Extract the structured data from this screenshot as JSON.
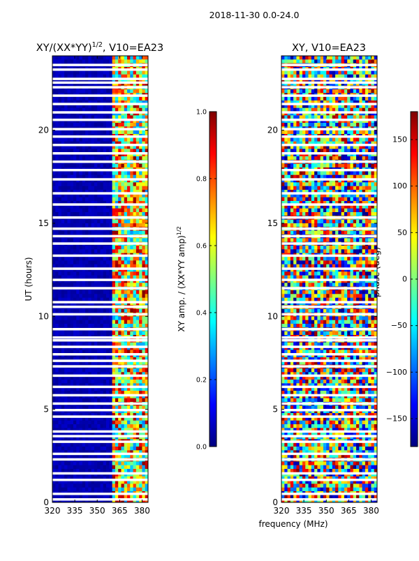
{
  "chart_data": {
    "suptitle": "2018-11-30 0.0-24.0",
    "shared_xlabel": "frequency (MHz)",
    "colors": {
      "jet": [
        "#00007f",
        "#0000ff",
        "#007fff",
        "#00ffff",
        "#7fff7f",
        "#ffff00",
        "#ff7f00",
        "#ff0000",
        "#7f0000"
      ],
      "gap": "#ffffff",
      "frame": "#000000"
    },
    "panels": [
      {
        "id": "amp",
        "type": "heatmap",
        "title_main": "XY/(XX*YY)",
        "title_exp": "1/2",
        "title_suffix": ", V10=EA23",
        "xlabel": "",
        "ylabel": "UT (hours)",
        "xlim": [
          320,
          384
        ],
        "ylim": [
          0,
          24
        ],
        "xticks": [
          320,
          335,
          350,
          365,
          380
        ],
        "yticks": [
          0,
          5,
          10,
          15,
          20
        ],
        "colorbar": {
          "label_main": "XY amp. / (XX*YY amp)",
          "label_exp": "1/2",
          "range": [
            0.0,
            1.0
          ],
          "ticks": [
            "0.0",
            "0.2",
            "0.4",
            "0.6",
            "0.8",
            "1.0"
          ]
        },
        "description": "low amplitude (~0) below 361 MHz, high variable amplitude above 361 MHz; white rows are flagged time gaps"
      },
      {
        "id": "phase",
        "type": "heatmap",
        "title_main": "XY",
        "title_exp": "",
        "title_suffix": ", V10=EA23",
        "xlabel": "",
        "ylabel": "",
        "xlim": [
          320,
          384
        ],
        "ylim": [
          0,
          24
        ],
        "xticks": [
          320,
          335,
          350,
          365,
          380
        ],
        "yticks": [
          0,
          5,
          10,
          15,
          20
        ],
        "colorbar": {
          "label_main": "phase (deg)",
          "label_exp": "",
          "range": [
            -180,
            180
          ],
          "ticks": [
            "−150",
            "−100",
            "−50",
            "0",
            "50",
            "100",
            "150"
          ]
        },
        "description": "phase noisy across full band; white rows are flagged time gaps"
      }
    ],
    "flagged_time_gaps_hours": [
      0.15,
      0.45,
      1.2,
      1.55,
      2.3,
      2.6,
      3.25,
      3.55,
      3.8,
      4.6,
      4.95,
      5.3,
      5.75,
      6.2,
      6.8,
      7.3,
      7.6,
      7.95,
      8.35,
      8.7,
      8.85,
      9.3,
      10.1,
      10.5,
      10.75,
      11.5,
      11.95,
      12.55,
      13.25,
      13.9,
      14.3,
      14.7,
      15.3,
      16.0,
      16.6,
      17.35,
      17.85,
      18.3,
      18.75,
      19.2,
      19.65,
      20.05,
      20.55,
      20.95,
      21.4,
      21.85,
      22.3,
      22.55,
      22.75,
      23.25,
      23.5
    ]
  }
}
